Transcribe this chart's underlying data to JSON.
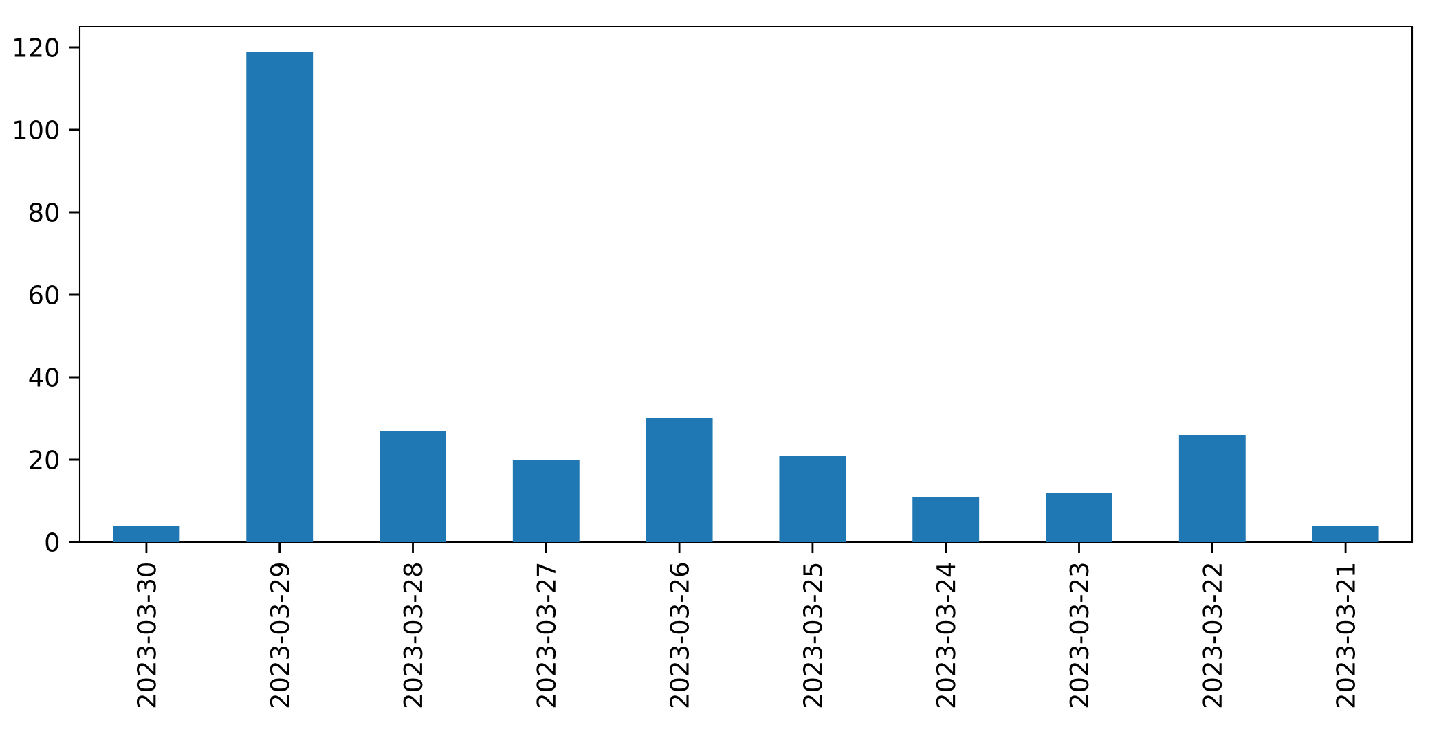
{
  "chart_data": {
    "type": "bar",
    "categories": [
      "2023-03-30",
      "2023-03-29",
      "2023-03-28",
      "2023-03-27",
      "2023-03-26",
      "2023-03-25",
      "2023-03-24",
      "2023-03-23",
      "2023-03-22",
      "2023-03-21"
    ],
    "values": [
      4,
      119,
      27,
      20,
      30,
      21,
      11,
      12,
      26,
      4
    ],
    "color": "#1f77b4",
    "ylim": [
      0,
      125
    ],
    "yticks": [
      0,
      20,
      40,
      60,
      80,
      100,
      120
    ]
  }
}
